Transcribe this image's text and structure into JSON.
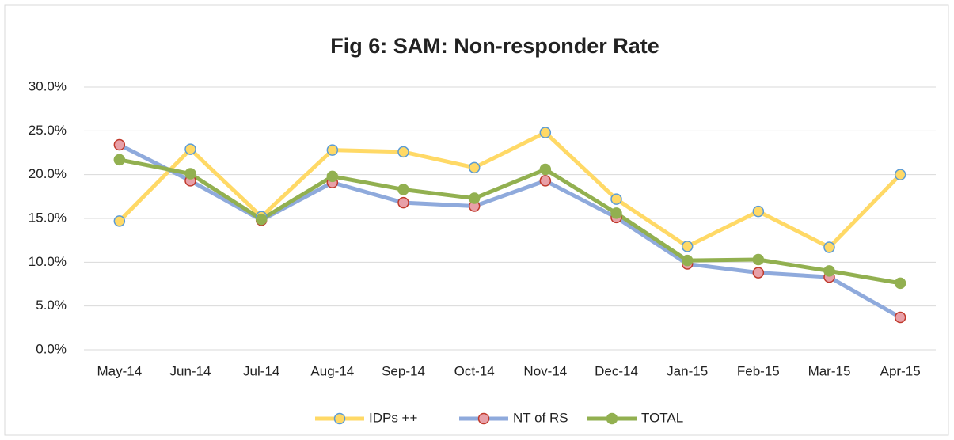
{
  "chart_data": {
    "type": "line",
    "title": "Fig 6: SAM: Non-responder Rate",
    "categories": [
      "May-14",
      "Jun-14",
      "Jul-14",
      "Aug-14",
      "Sep-14",
      "Oct-14",
      "Nov-14",
      "Dec-14",
      "Jan-15",
      "Feb-15",
      "Mar-15",
      "Apr-15"
    ],
    "series": [
      {
        "name": "IDPs ++",
        "color": "#ffd966",
        "marker_color": "#ffd966",
        "marker_edge": "#5b9bd5",
        "values": [
          14.7,
          22.9,
          15.2,
          22.8,
          22.6,
          20.8,
          24.8,
          17.2,
          11.8,
          15.8,
          11.7,
          20.0
        ]
      },
      {
        "name": "NT of RS",
        "color": "#8faadc",
        "marker_color": "#e8a0a8",
        "marker_edge": "#c0392b",
        "values": [
          23.4,
          19.3,
          14.8,
          19.1,
          16.8,
          16.4,
          19.3,
          15.1,
          9.8,
          8.8,
          8.3,
          3.7
        ]
      },
      {
        "name": "TOTAL",
        "color": "#92b050",
        "marker_color": "#92b050",
        "marker_edge": "#92b050",
        "values": [
          21.7,
          20.1,
          14.9,
          19.8,
          18.3,
          17.3,
          20.6,
          15.6,
          10.2,
          10.3,
          9.0,
          7.6
        ]
      }
    ],
    "ylim": [
      0,
      30
    ],
    "yticks": [
      {
        "value": 0,
        "label": "0.0%"
      },
      {
        "value": 5,
        "label": "5.0%"
      },
      {
        "value": 10,
        "label": "10.0%"
      },
      {
        "value": 15,
        "label": "15.0%"
      },
      {
        "value": 20,
        "label": "20.0%"
      },
      {
        "value": 25,
        "label": "25.0%"
      },
      {
        "value": 30,
        "label": "30.0%"
      }
    ],
    "grid": true,
    "legend": "bottom"
  }
}
